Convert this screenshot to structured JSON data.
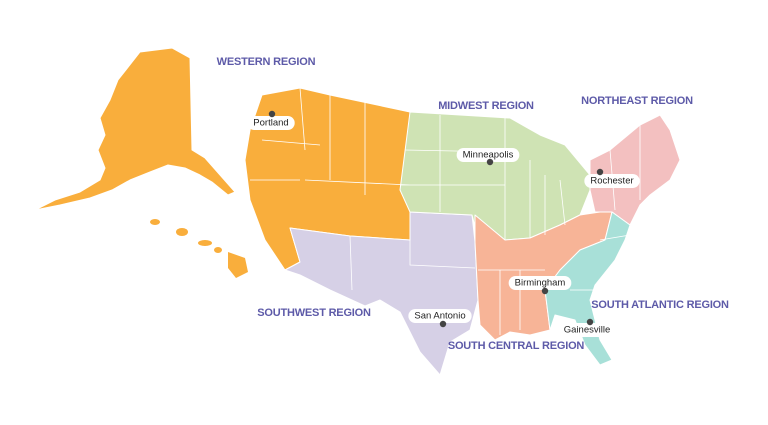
{
  "regions": [
    {
      "label": "WESTERN REGION"
    },
    {
      "label": "MIDWEST REGION"
    },
    {
      "label": "NORTHEAST REGION"
    },
    {
      "label": "SOUTHWEST REGION"
    },
    {
      "label": "SOUTH CENTRAL REGION"
    },
    {
      "label": "SOUTH ATLANTIC REGION"
    }
  ],
  "cities": [
    {
      "name": "Portland"
    },
    {
      "name": "Minneapolis"
    },
    {
      "name": "Rochester"
    },
    {
      "name": "Birmingham"
    },
    {
      "name": "San Antonio"
    },
    {
      "name": "Gainesville"
    }
  ]
}
